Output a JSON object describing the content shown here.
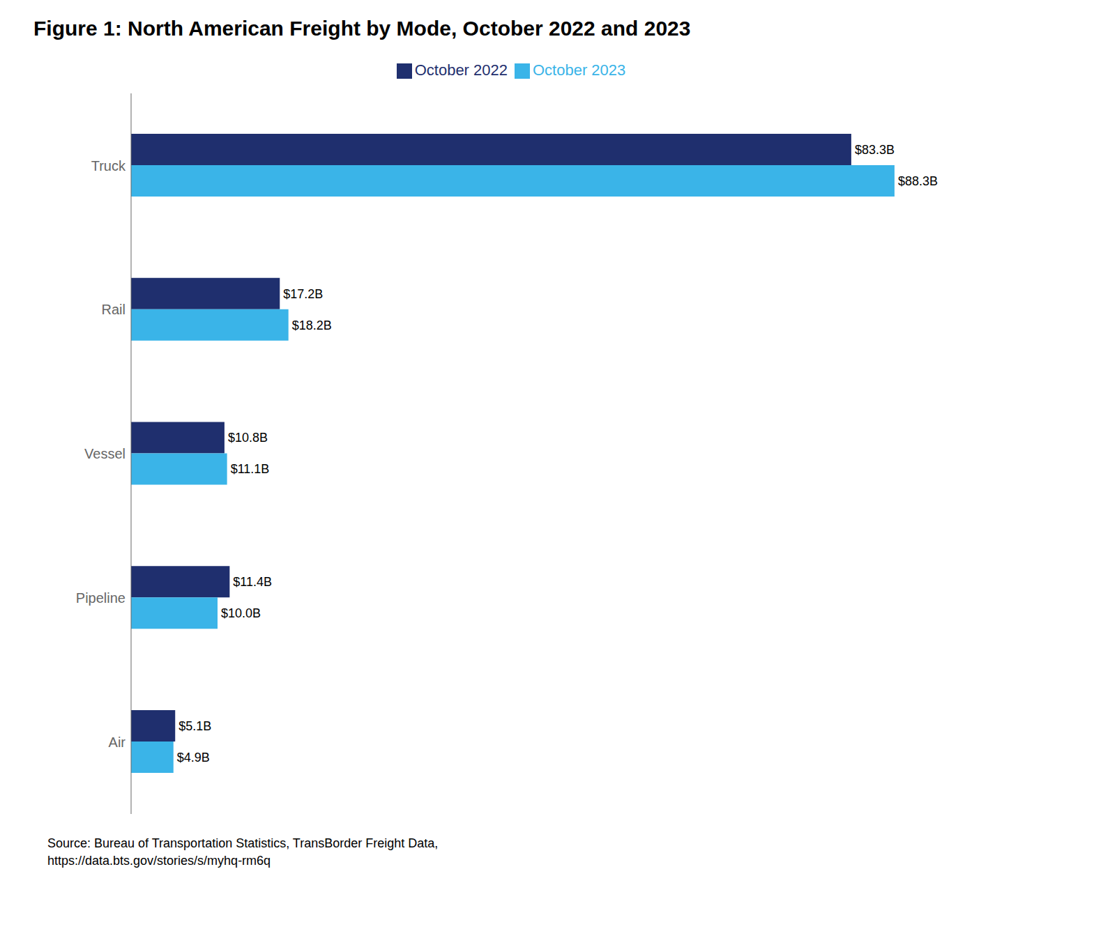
{
  "chart_data": {
    "type": "bar",
    "orientation": "horizontal",
    "title": "Figure 1: North American Freight by Mode, October 2022 and 2023",
    "annotations": [
      "Source: Bureau of Transportation Statistics, TransBorder Freight Data,\nhttps://data.bts.gov/stories/s/myhq-rm6q"
    ],
    "categories": [
      "Truck",
      "Rail",
      "Vessel",
      "Pipeline",
      "Air"
    ],
    "series": [
      {
        "name": "October 2022",
        "color": "#1f2f6e",
        "values": [
          83.3,
          17.2,
          10.8,
          11.4,
          5.1
        ],
        "value_labels": [
          "$83.3B",
          "$17.2B",
          "$10.8B",
          "$11.4B",
          "$5.1B"
        ]
      },
      {
        "name": "October 2023",
        "color": "#3ab4e8",
        "values": [
          88.3,
          18.2,
          11.1,
          10.0,
          4.9
        ],
        "value_labels": [
          "$88.3B",
          "$18.2B",
          "$11.1B",
          "$10.0B",
          "$4.9B"
        ]
      }
    ],
    "xlim": [
      0,
      100
    ],
    "tick_labels": "y",
    "data_labels": true,
    "legend": "top",
    "grid": false
  }
}
